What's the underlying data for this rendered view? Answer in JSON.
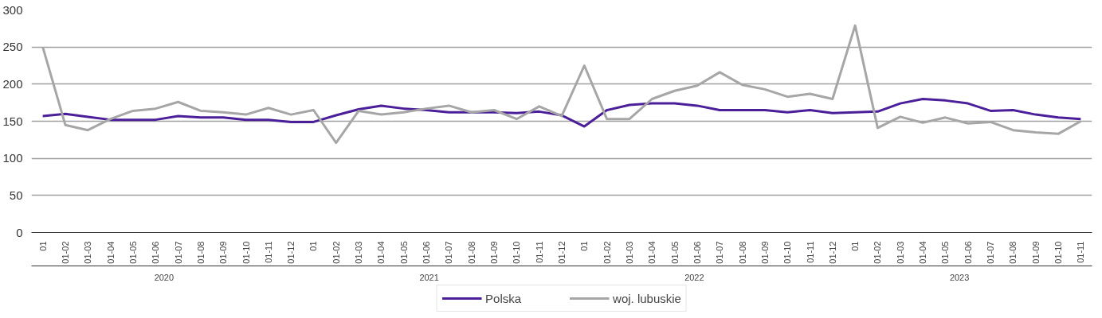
{
  "chart_data": {
    "type": "line",
    "categories": [
      "01",
      "01-02",
      "01-03",
      "01-04",
      "01-05",
      "01-06",
      "01-07",
      "01-08",
      "01-09",
      "01-10",
      "01-11",
      "01-12",
      "01",
      "01-02",
      "01-03",
      "01-04",
      "01-05",
      "01-06",
      "01-07",
      "01-08",
      "01-09",
      "01-10",
      "01-11",
      "01-12",
      "01",
      "01-02",
      "01-03",
      "01-04",
      "01-05",
      "01-06",
      "01-07",
      "01-08",
      "01-09",
      "01-10",
      "01-11",
      "01-12",
      "01",
      "01-02",
      "01-03",
      "01-04",
      "01-05",
      "01-06",
      "01-07",
      "01-08",
      "01-09",
      "01-10",
      "01-11"
    ],
    "series": [
      {
        "name": "Polska",
        "color": "#4b1f9a",
        "values": [
          157,
          160,
          156,
          152,
          152,
          152,
          157,
          155,
          155,
          152,
          152,
          149,
          149,
          158,
          166,
          171,
          167,
          165,
          162,
          162,
          162,
          161,
          163,
          158,
          143,
          165,
          172,
          174,
          174,
          171,
          165,
          165,
          165,
          162,
          165,
          161,
          162,
          163,
          174,
          180,
          178,
          174,
          164,
          165,
          159,
          155,
          153
        ]
      },
      {
        "name": "woj. lubuskie",
        "color": "#a6a6a6",
        "values": [
          250,
          145,
          138,
          153,
          164,
          167,
          176,
          164,
          162,
          159,
          168,
          159,
          165,
          121,
          164,
          159,
          162,
          167,
          171,
          162,
          165,
          153,
          170,
          157,
          225,
          153,
          153,
          180,
          191,
          198,
          216,
          199,
          193,
          183,
          187,
          180,
          279,
          141,
          156,
          148,
          155,
          147,
          149,
          138,
          135,
          133,
          150
        ]
      }
    ],
    "annotations": [
      "2020",
      "2021",
      "2022",
      "2023"
    ],
    "ylim": [
      0,
      300
    ],
    "yticks": [
      0,
      50,
      100,
      150,
      200,
      250,
      300
    ],
    "grid": "y",
    "legend": "bottom",
    "marker": "none",
    "line_style": "solid"
  }
}
